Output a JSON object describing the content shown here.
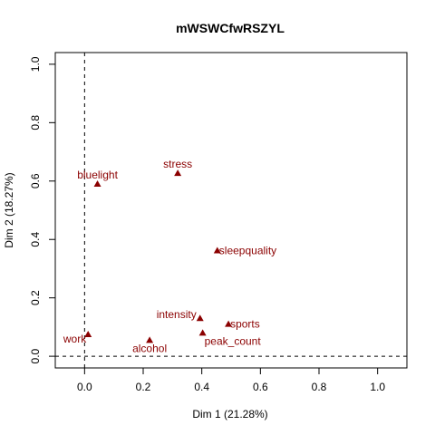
{
  "chart_data": {
    "type": "scatter",
    "title": "mWSWCfwRSZYL",
    "xlabel": "Dim 1 (21.28%)",
    "ylabel": "Dim 2 (18.27%)",
    "xlim": [
      -0.1,
      1.1
    ],
    "ylim": [
      -0.04,
      1.04
    ],
    "xticks": [
      0.0,
      0.2,
      0.4,
      0.6,
      0.8,
      1.0
    ],
    "xtick_labels": [
      "0.0",
      "0.2",
      "0.4",
      "0.6",
      "0.8",
      "1.0"
    ],
    "yticks": [
      0.0,
      0.2,
      0.4,
      0.6,
      0.8,
      1.0
    ],
    "ytick_labels": [
      "0.0",
      "0.2",
      "0.4",
      "0.6",
      "0.8",
      "1.0"
    ],
    "reference_lines": {
      "x": 0,
      "y": 0,
      "style": "dashed"
    },
    "marker": "triangle",
    "color": "#8b0000",
    "points": [
      {
        "label": "stress",
        "x": 0.318,
        "y": 0.627,
        "label_pos": "top"
      },
      {
        "label": "bluelight",
        "x": 0.044,
        "y": 0.59,
        "label_pos": "top"
      },
      {
        "label": "sleepquality",
        "x": 0.453,
        "y": 0.362,
        "label_pos": "right"
      },
      {
        "label": "intensity",
        "x": 0.394,
        "y": 0.13,
        "label_pos": "left"
      },
      {
        "label": "sports",
        "x": 0.491,
        "y": 0.11,
        "label_pos": "right"
      },
      {
        "label": "peak_count",
        "x": 0.403,
        "y": 0.08,
        "label_pos": "below-right"
      },
      {
        "label": "work",
        "x": 0.012,
        "y": 0.075,
        "label_pos": "below-left"
      },
      {
        "label": "alcohol",
        "x": 0.222,
        "y": 0.055,
        "label_pos": "below"
      }
    ]
  }
}
